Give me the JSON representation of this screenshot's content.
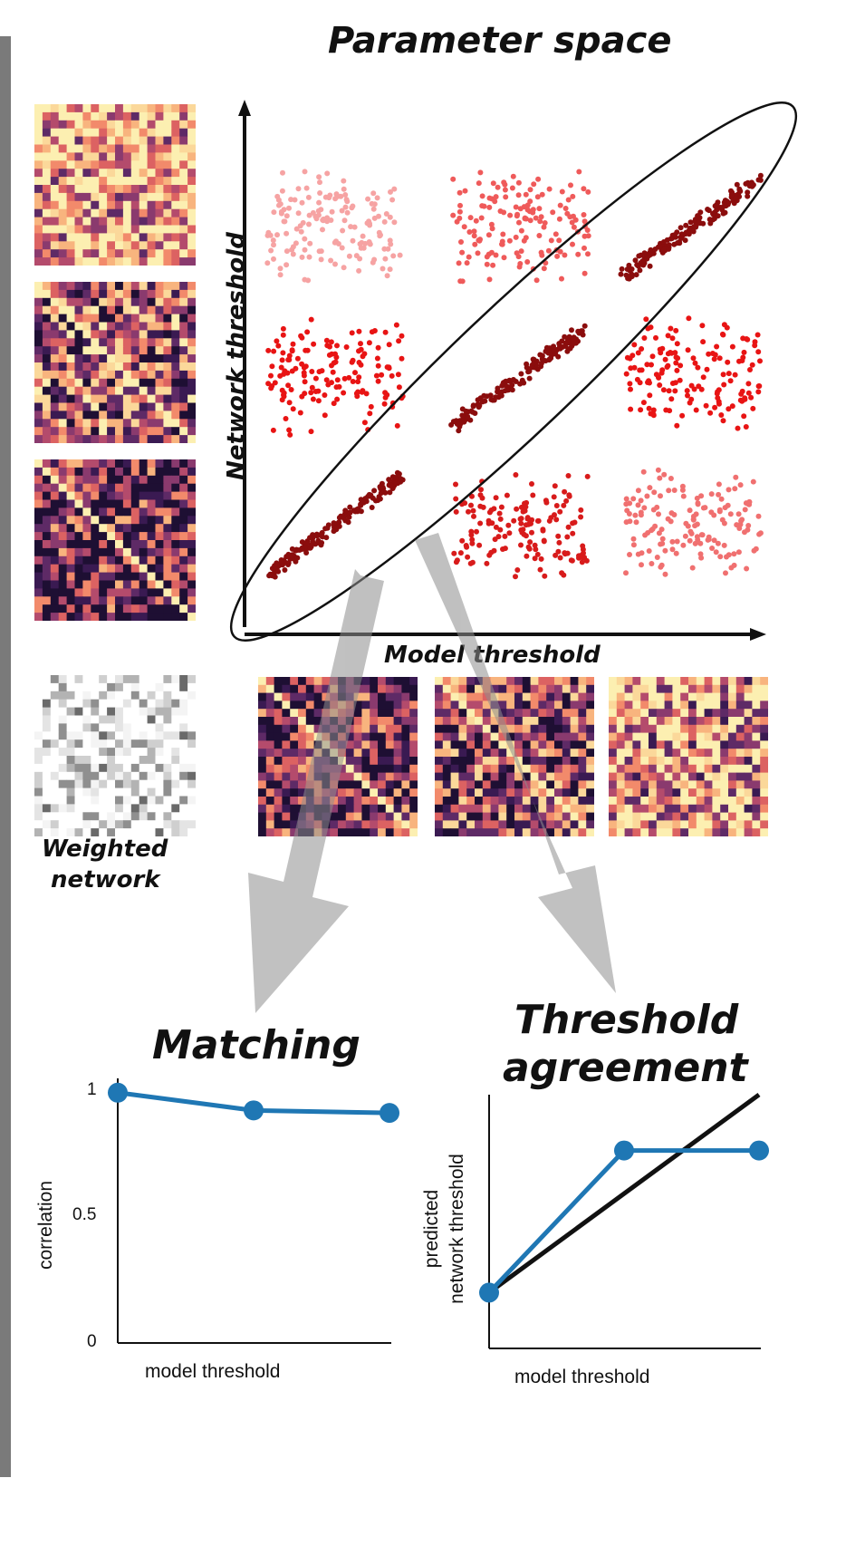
{
  "titles": {
    "parameter_space": "Parameter space",
    "matching": "Matching",
    "threshold_line1": "Threshold",
    "threshold_line2": "agreement"
  },
  "scatter_panel": {
    "ylabel": "Network threshold",
    "xlabel": "Model threshold",
    "clusters": [
      {
        "col": 0,
        "row": 0,
        "color": "#f6a3a3"
      },
      {
        "col": 1,
        "row": 0,
        "color": "#ef5a5a"
      },
      {
        "col": 2,
        "row": 0,
        "color": "#8b0d0d"
      },
      {
        "col": 0,
        "row": 1,
        "color": "#e81414"
      },
      {
        "col": 1,
        "row": 1,
        "color": "#8b0d0d"
      },
      {
        "col": 2,
        "row": 1,
        "color": "#e81414"
      },
      {
        "col": 0,
        "row": 2,
        "color": "#8b0d0d"
      },
      {
        "col": 1,
        "row": 2,
        "color": "#d81b1b"
      },
      {
        "col": 2,
        "row": 2,
        "color": "#f07070"
      }
    ]
  },
  "weighted_network": {
    "line1": "Weighted",
    "line2": "network"
  },
  "matching_chart": {
    "type": "line",
    "ylabel": "correlation",
    "xlabel": "model threshold",
    "yticks": [
      "1",
      "0.5",
      "0"
    ],
    "ylim": [
      0,
      1
    ],
    "values": [
      0.99,
      0.92,
      0.91
    ],
    "color": "#1f77b4"
  },
  "threshold_chart": {
    "type": "line",
    "ylabel_line1": "predicted",
    "ylabel_line2": "network threshold",
    "xlabel": "model threshold",
    "values": [
      0.22,
      0.78,
      0.78
    ],
    "identity": [
      0.22,
      1.0
    ],
    "color": "#1f77b4"
  }
}
